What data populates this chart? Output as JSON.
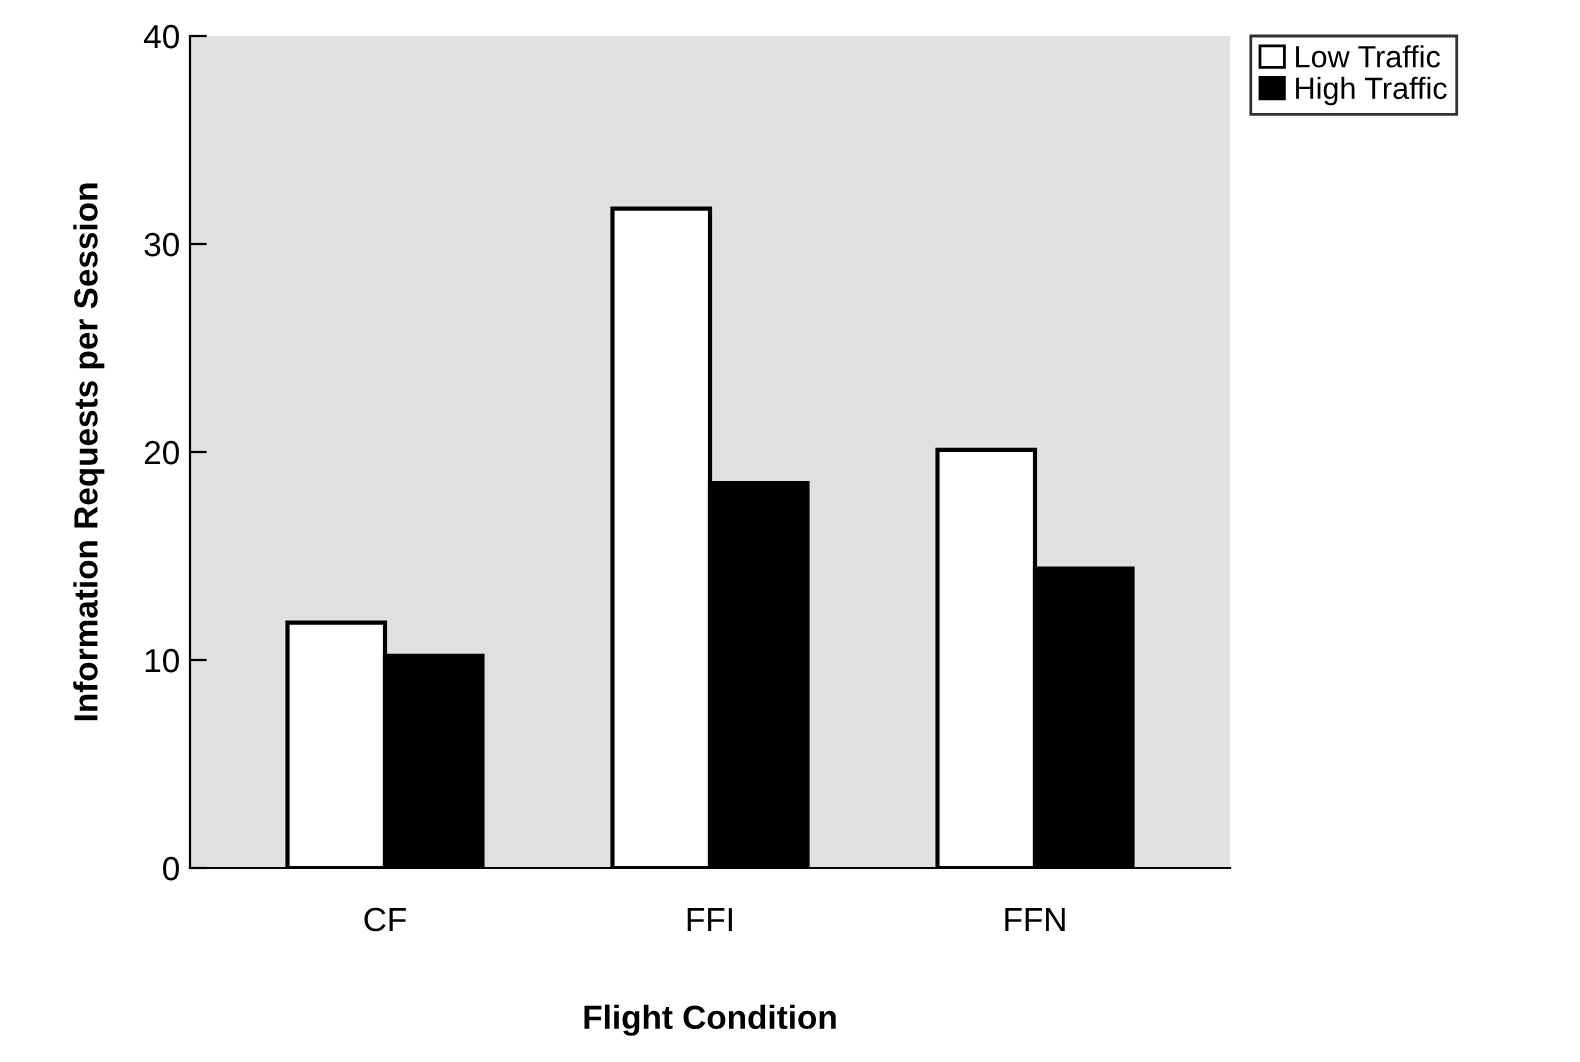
{
  "chart_data": {
    "type": "bar",
    "xlabel": "Flight Condition",
    "ylabel": "Information Requests per Session",
    "categories": [
      "CF",
      "FFI",
      "FFN"
    ],
    "series": [
      {
        "name": "Low Traffic",
        "color": "#ffffff",
        "values": [
          11.8,
          31.7,
          20.1
        ]
      },
      {
        "name": "High Traffic",
        "color": "#000000",
        "values": [
          10.2,
          18.5,
          14.4
        ]
      }
    ],
    "ylim": [
      0,
      40
    ],
    "yticks": [
      0,
      10,
      20,
      30,
      40
    ],
    "grid": false,
    "legend": "top right"
  }
}
